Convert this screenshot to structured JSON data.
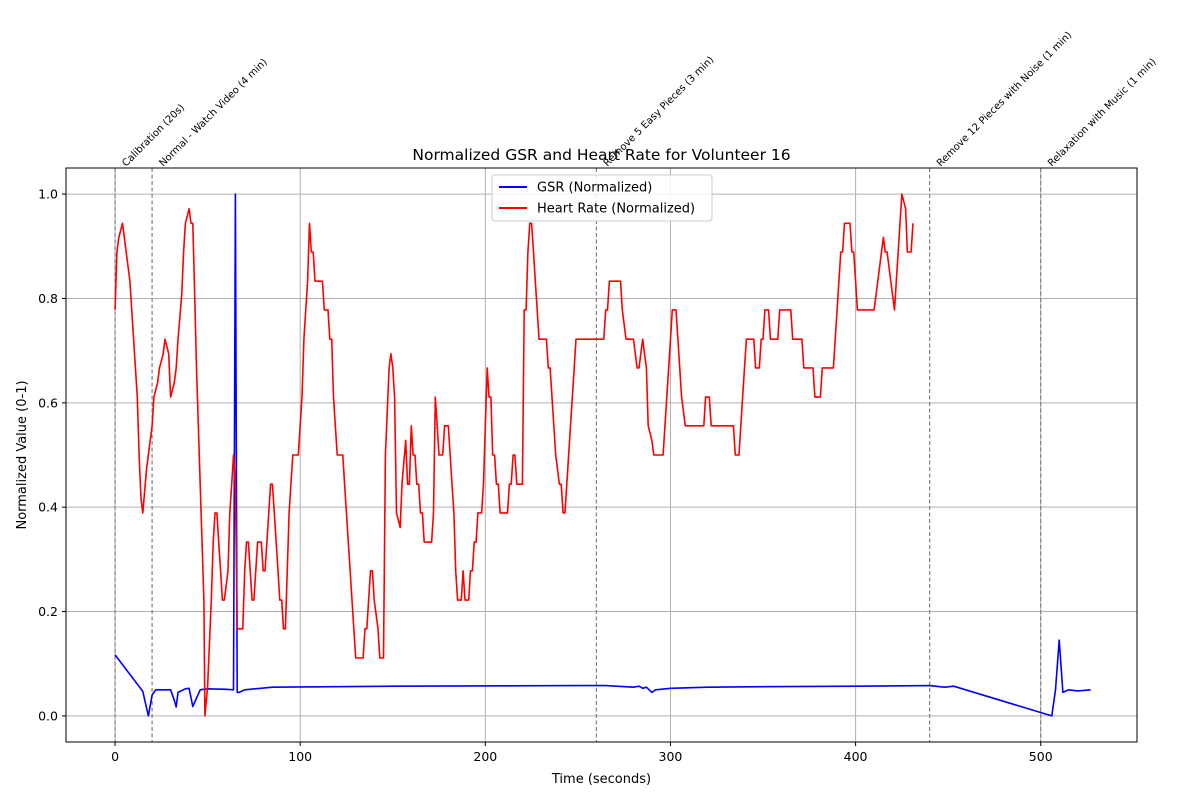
{
  "chart_data": {
    "type": "line",
    "title": "Normalized GSR and Heart Rate for Volunteer 16",
    "xlabel": "Time (seconds)",
    "ylabel": "Normalized Value (0-1)",
    "xlim": [
      -26.5,
      552
    ],
    "ylim": [
      -0.05,
      1.05
    ],
    "xticks": [
      0,
      100,
      200,
      300,
      400,
      500
    ],
    "yticks": [
      0.0,
      0.2,
      0.4,
      0.6,
      0.8,
      1.0
    ],
    "xtick_labels": [
      "0",
      "100",
      "200",
      "300",
      "400",
      "500"
    ],
    "ytick_labels": [
      "0.0",
      "0.2",
      "0.4",
      "0.6",
      "0.8",
      "1.0"
    ],
    "grid": true,
    "legend_position": "top-center",
    "phases": [
      {
        "x": 0,
        "label": "Calibration (20s)"
      },
      {
        "x": 20,
        "label": "Normal - Watch Video (4 min)"
      },
      {
        "x": 260,
        "label": "Remove 5 Easy Pieces (3 min)"
      },
      {
        "x": 440,
        "label": "Remove 12 Pieces with Noise (1 min)"
      },
      {
        "x": 500,
        "label": "Relaxation with Music (1 min)"
      }
    ],
    "series": [
      {
        "name": "GSR (Normalized)",
        "color": "#0000ff",
        "points": [
          [
            0,
            0.117
          ],
          [
            15,
            0.047
          ],
          [
            18,
            0.0
          ],
          [
            20,
            0.04
          ],
          [
            22,
            0.05
          ],
          [
            28,
            0.05
          ],
          [
            30,
            0.05
          ],
          [
            32,
            0.03
          ],
          [
            33,
            0.017
          ],
          [
            34,
            0.045
          ],
          [
            38,
            0.052
          ],
          [
            40,
            0.053
          ],
          [
            42,
            0.018
          ],
          [
            46,
            0.05
          ],
          [
            50,
            0.052
          ],
          [
            60,
            0.051
          ],
          [
            64,
            0.05
          ],
          [
            65,
            1.0
          ],
          [
            66,
            0.045
          ],
          [
            67,
            0.045
          ],
          [
            70,
            0.05
          ],
          [
            85,
            0.055
          ],
          [
            150,
            0.057
          ],
          [
            250,
            0.058
          ],
          [
            260,
            0.058
          ],
          [
            265,
            0.058
          ],
          [
            280,
            0.055
          ],
          [
            283,
            0.057
          ],
          [
            285,
            0.053
          ],
          [
            287,
            0.055
          ],
          [
            290,
            0.045
          ],
          [
            292,
            0.05
          ],
          [
            300,
            0.053
          ],
          [
            320,
            0.055
          ],
          [
            350,
            0.056
          ],
          [
            400,
            0.057
          ],
          [
            440,
            0.058
          ],
          [
            448,
            0.055
          ],
          [
            453,
            0.057
          ],
          [
            506,
            0.0
          ],
          [
            508,
            0.05
          ],
          [
            510,
            0.145
          ],
          [
            512,
            0.045
          ],
          [
            515,
            0.05
          ],
          [
            520,
            0.048
          ],
          [
            527,
            0.05
          ]
        ]
      },
      {
        "name": "Heart Rate (Normalized)",
        "color": "#ff0000",
        "points": [
          [
            0,
            0.778
          ],
          [
            1,
            0.889
          ],
          [
            2,
            0.917
          ],
          [
            4,
            0.944
          ],
          [
            6,
            0.889
          ],
          [
            8,
            0.833
          ],
          [
            10,
            0.722
          ],
          [
            12,
            0.611
          ],
          [
            13,
            0.5
          ],
          [
            14,
            0.417
          ],
          [
            15,
            0.389
          ],
          [
            17,
            0.472
          ],
          [
            19,
            0.528
          ],
          [
            20,
            0.556
          ],
          [
            21,
            0.611
          ],
          [
            23,
            0.639
          ],
          [
            24,
            0.667
          ],
          [
            26,
            0.694
          ],
          [
            27,
            0.722
          ],
          [
            29,
            0.694
          ],
          [
            30,
            0.611
          ],
          [
            32,
            0.639
          ],
          [
            33,
            0.667
          ],
          [
            34,
            0.722
          ],
          [
            36,
            0.806
          ],
          [
            37,
            0.889
          ],
          [
            38,
            0.944
          ],
          [
            40,
            0.972
          ],
          [
            41,
            0.944
          ],
          [
            42,
            0.944
          ],
          [
            43,
            0.806
          ],
          [
            44,
            0.667
          ],
          [
            46,
            0.444
          ],
          [
            48,
            0.222
          ],
          [
            48.5,
            0.0
          ],
          [
            50,
            0.056
          ],
          [
            52,
            0.222
          ],
          [
            53,
            0.333
          ],
          [
            54,
            0.389
          ],
          [
            55,
            0.389
          ],
          [
            56,
            0.333
          ],
          [
            57,
            0.278
          ],
          [
            58,
            0.222
          ],
          [
            59,
            0.222
          ],
          [
            61,
            0.278
          ],
          [
            62,
            0.389
          ],
          [
            63,
            0.444
          ],
          [
            64,
            0.5
          ],
          [
            65,
            0.444
          ],
          [
            66,
            0.167
          ],
          [
            69,
            0.167
          ],
          [
            70,
            0.278
          ],
          [
            71,
            0.333
          ],
          [
            72,
            0.333
          ],
          [
            73,
            0.278
          ],
          [
            74,
            0.222
          ],
          [
            75,
            0.222
          ],
          [
            77,
            0.333
          ],
          [
            79,
            0.333
          ],
          [
            80,
            0.278
          ],
          [
            81,
            0.278
          ],
          [
            82,
            0.333
          ],
          [
            84,
            0.444
          ],
          [
            85,
            0.444
          ],
          [
            86,
            0.389
          ],
          [
            88,
            0.278
          ],
          [
            89,
            0.222
          ],
          [
            90,
            0.222
          ],
          [
            91,
            0.167
          ],
          [
            92,
            0.167
          ],
          [
            94,
            0.389
          ],
          [
            96,
            0.5
          ],
          [
            99,
            0.5
          ],
          [
            101,
            0.611
          ],
          [
            102,
            0.722
          ],
          [
            104,
            0.833
          ],
          [
            105,
            0.944
          ],
          [
            106,
            0.889
          ],
          [
            107,
            0.889
          ],
          [
            108,
            0.833
          ],
          [
            112,
            0.833
          ],
          [
            113,
            0.778
          ],
          [
            115,
            0.778
          ],
          [
            116,
            0.722
          ],
          [
            117,
            0.722
          ],
          [
            118,
            0.611
          ],
          [
            120,
            0.5
          ],
          [
            123,
            0.5
          ],
          [
            124,
            0.444
          ],
          [
            126,
            0.333
          ],
          [
            128,
            0.222
          ],
          [
            130,
            0.111
          ],
          [
            134,
            0.111
          ],
          [
            135,
            0.167
          ],
          [
            136,
            0.167
          ],
          [
            138,
            0.278
          ],
          [
            139,
            0.278
          ],
          [
            140,
            0.222
          ],
          [
            142,
            0.167
          ],
          [
            143,
            0.111
          ],
          [
            145,
            0.111
          ],
          [
            146,
            0.5
          ],
          [
            148,
            0.667
          ],
          [
            149,
            0.694
          ],
          [
            150,
            0.667
          ],
          [
            151,
            0.611
          ],
          [
            152,
            0.389
          ],
          [
            154,
            0.361
          ],
          [
            155,
            0.444
          ],
          [
            157,
            0.528
          ],
          [
            158,
            0.444
          ],
          [
            159,
            0.444
          ],
          [
            160,
            0.556
          ],
          [
            161,
            0.5
          ],
          [
            162,
            0.5
          ],
          [
            163,
            0.444
          ],
          [
            164,
            0.444
          ],
          [
            165,
            0.389
          ],
          [
            166,
            0.389
          ],
          [
            167,
            0.333
          ],
          [
            171,
            0.333
          ],
          [
            172,
            0.389
          ],
          [
            173,
            0.611
          ],
          [
            174,
            0.556
          ],
          [
            175,
            0.5
          ],
          [
            177,
            0.5
          ],
          [
            178,
            0.556
          ],
          [
            180,
            0.556
          ],
          [
            182,
            0.444
          ],
          [
            183,
            0.389
          ],
          [
            184,
            0.278
          ],
          [
            185,
            0.222
          ],
          [
            187,
            0.222
          ],
          [
            188,
            0.278
          ],
          [
            189,
            0.222
          ],
          [
            191,
            0.222
          ],
          [
            192,
            0.278
          ],
          [
            193,
            0.278
          ],
          [
            194,
            0.333
          ],
          [
            195,
            0.333
          ],
          [
            196,
            0.389
          ],
          [
            198,
            0.389
          ],
          [
            199,
            0.444
          ],
          [
            200,
            0.556
          ],
          [
            201,
            0.667
          ],
          [
            202,
            0.611
          ],
          [
            203,
            0.611
          ],
          [
            204,
            0.5
          ],
          [
            205,
            0.5
          ],
          [
            206,
            0.444
          ],
          [
            207,
            0.444
          ],
          [
            208,
            0.389
          ],
          [
            212,
            0.389
          ],
          [
            213,
            0.444
          ],
          [
            214,
            0.444
          ],
          [
            215,
            0.5
          ],
          [
            216,
            0.5
          ],
          [
            217,
            0.444
          ],
          [
            220,
            0.444
          ],
          [
            221,
            0.778
          ],
          [
            222,
            0.778
          ],
          [
            223,
            0.889
          ],
          [
            224,
            0.944
          ],
          [
            225,
            0.944
          ],
          [
            226,
            0.889
          ],
          [
            227,
            0.833
          ],
          [
            228,
            0.778
          ],
          [
            229,
            0.722
          ],
          [
            233,
            0.722
          ],
          [
            234,
            0.667
          ],
          [
            235,
            0.667
          ],
          [
            236,
            0.611
          ],
          [
            238,
            0.5
          ],
          [
            240,
            0.444
          ],
          [
            241,
            0.444
          ],
          [
            242,
            0.389
          ],
          [
            243,
            0.389
          ],
          [
            244,
            0.444
          ],
          [
            246,
            0.556
          ],
          [
            248,
            0.667
          ],
          [
            249,
            0.722
          ],
          [
            264,
            0.722
          ],
          [
            265,
            0.778
          ],
          [
            266,
            0.778
          ],
          [
            267,
            0.833
          ],
          [
            273,
            0.833
          ],
          [
            274,
            0.778
          ],
          [
            276,
            0.722
          ],
          [
            280,
            0.722
          ],
          [
            281,
            0.694
          ],
          [
            282,
            0.667
          ],
          [
            283,
            0.667
          ],
          [
            284,
            0.694
          ],
          [
            285,
            0.722
          ],
          [
            286,
            0.694
          ],
          [
            287,
            0.667
          ],
          [
            288,
            0.556
          ],
          [
            290,
            0.528
          ],
          [
            291,
            0.5
          ],
          [
            296,
            0.5
          ],
          [
            298,
            0.611
          ],
          [
            300,
            0.722
          ],
          [
            301,
            0.778
          ],
          [
            303,
            0.778
          ],
          [
            304,
            0.722
          ],
          [
            306,
            0.611
          ],
          [
            308,
            0.556
          ],
          [
            318,
            0.556
          ],
          [
            319,
            0.611
          ],
          [
            321,
            0.611
          ],
          [
            322,
            0.556
          ],
          [
            334,
            0.556
          ],
          [
            335,
            0.5
          ],
          [
            337,
            0.5
          ],
          [
            338,
            0.556
          ],
          [
            340,
            0.667
          ],
          [
            341,
            0.722
          ],
          [
            345,
            0.722
          ],
          [
            346,
            0.667
          ],
          [
            348,
            0.667
          ],
          [
            349,
            0.722
          ],
          [
            350,
            0.722
          ],
          [
            351,
            0.778
          ],
          [
            353,
            0.778
          ],
          [
            354,
            0.722
          ],
          [
            358,
            0.722
          ],
          [
            359,
            0.778
          ],
          [
            365,
            0.778
          ],
          [
            366,
            0.722
          ],
          [
            371,
            0.722
          ],
          [
            372,
            0.667
          ],
          [
            377,
            0.667
          ],
          [
            378,
            0.611
          ],
          [
            381,
            0.611
          ],
          [
            382,
            0.667
          ],
          [
            388,
            0.667
          ],
          [
            390,
            0.778
          ],
          [
            391,
            0.833
          ],
          [
            392,
            0.889
          ],
          [
            393,
            0.889
          ],
          [
            394,
            0.944
          ],
          [
            397,
            0.944
          ],
          [
            398,
            0.889
          ],
          [
            399,
            0.889
          ],
          [
            400,
            0.833
          ],
          [
            401,
            0.778
          ],
          [
            410,
            0.778
          ],
          [
            412,
            0.833
          ],
          [
            414,
            0.889
          ],
          [
            415,
            0.917
          ],
          [
            416,
            0.889
          ],
          [
            417,
            0.889
          ],
          [
            419,
            0.833
          ],
          [
            420,
            0.806
          ],
          [
            421,
            0.778
          ],
          [
            422,
            0.833
          ],
          [
            423,
            0.889
          ],
          [
            424,
            0.944
          ],
          [
            425,
            1.0
          ],
          [
            427,
            0.972
          ],
          [
            428,
            0.889
          ],
          [
            430,
            0.889
          ],
          [
            431,
            0.944
          ]
        ]
      }
    ]
  }
}
